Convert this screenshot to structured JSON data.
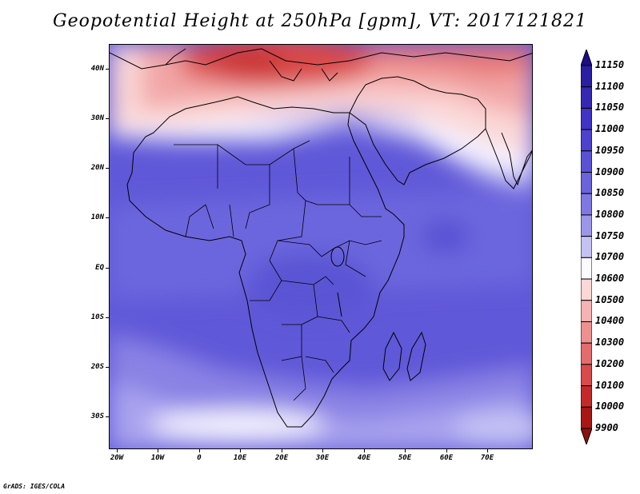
{
  "title": "Geopotential Height at 250hPa [gpm], VT: 2017121821",
  "credit": "GrADS: IGES/COLA",
  "map": {
    "lat_labels": [
      "40N",
      "30N",
      "20N",
      "10N",
      "EQ",
      "10S",
      "20S",
      "30S"
    ],
    "lon_labels": [
      "20W",
      "10W",
      "0",
      "10E",
      "20E",
      "30E",
      "40E",
      "50E",
      "60E",
      "70E"
    ]
  },
  "colorbar": {
    "labels": [
      "11150",
      "11100",
      "11050",
      "11000",
      "10950",
      "10900",
      "10850",
      "10800",
      "10750",
      "10700",
      "10600",
      "10500",
      "10400",
      "10300",
      "10200",
      "10100",
      "10000",
      "9900"
    ],
    "colors": [
      "#1f0c8a",
      "#2a1ea2",
      "#3528b4",
      "#4133c6",
      "#4d42cf",
      "#5a52d6",
      "#6a63dc",
      "#8078e2",
      "#9c96ea",
      "#c4c2f4",
      "#fbfbff",
      "#fbd7d6",
      "#f6b3b3",
      "#ee9090",
      "#e46c6c",
      "#d94a4a",
      "#c52a2a",
      "#a81616",
      "#8c1010"
    ]
  }
}
